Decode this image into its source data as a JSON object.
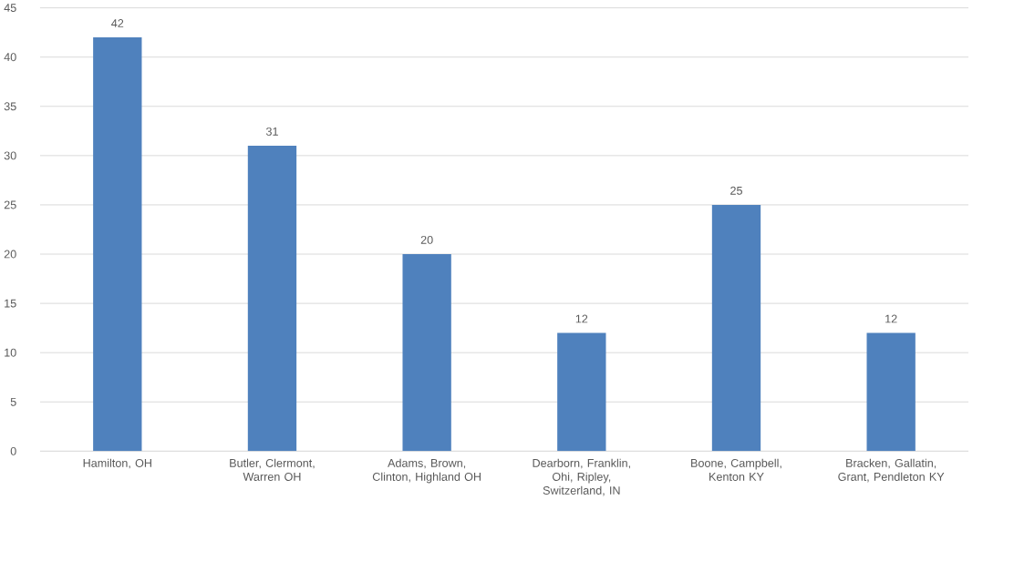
{
  "chart_data": {
    "type": "bar",
    "categories": [
      "Hamilton, OH",
      "Butler, Clermont, Warren OH",
      "Adams, Brown, Clinton, Highland OH",
      "Dearborn, Franklin, Ohi, Ripley, Switzerland, IN",
      "Boone, Campbell, Kenton KY",
      "Bracken, Gallatin, Grant, Pendleton KY"
    ],
    "values": [
      42,
      31,
      20,
      12,
      25,
      12
    ],
    "color": "#4f81bd",
    "ylim": [
      0,
      45
    ],
    "yticks": [
      0,
      5,
      10,
      15,
      20,
      25,
      30,
      35,
      40,
      45
    ],
    "grid": "y",
    "data_labels": true
  }
}
